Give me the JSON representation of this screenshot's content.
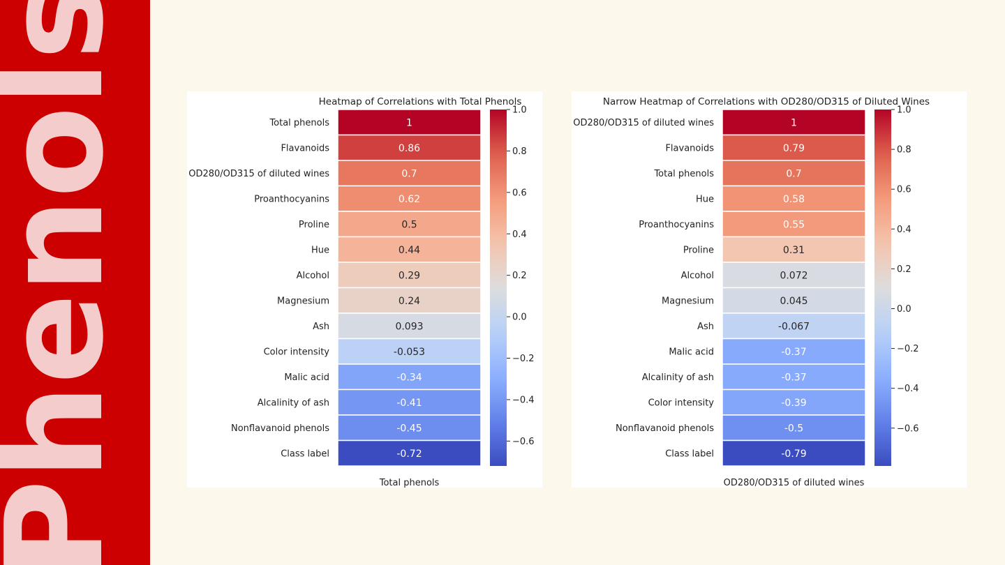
{
  "sidebar": {
    "title": "Phenols"
  },
  "chart_data": [
    {
      "type": "heatmap",
      "title": "Heatmap of Correlations with Total Phenols",
      "xlabel": "Total phenols",
      "rows": [
        "Total phenols",
        "Flavanoids",
        "OD280/OD315 of diluted wines",
        "Proanthocyanins",
        "Proline",
        "Hue",
        "Alcohol",
        "Magnesium",
        "Ash",
        "Color intensity",
        "Malic acid",
        "Alcalinity of ash",
        "Nonflavanoid phenols",
        "Class label"
      ],
      "values": [
        1,
        0.86,
        0.7,
        0.62,
        0.5,
        0.44,
        0.29,
        0.24,
        0.093,
        -0.053,
        -0.34,
        -0.41,
        -0.45,
        -0.72
      ],
      "value_labels": [
        "1",
        "0.86",
        "0.7",
        "0.62",
        "0.5",
        "0.44",
        "0.29",
        "0.24",
        "0.093",
        "-0.053",
        "-0.34",
        "-0.41",
        "-0.45",
        "-0.72"
      ],
      "colorbar": {
        "range": [
          -0.72,
          1
        ],
        "ticks": [
          1.0,
          0.8,
          0.6,
          0.4,
          0.2,
          0.0,
          -0.2,
          -0.4,
          -0.6
        ],
        "tick_labels": [
          "1.0",
          "0.8",
          "0.6",
          "0.4",
          "0.2",
          "0.0",
          "−0.2",
          "−0.4",
          "−0.6"
        ]
      },
      "colormap": "coolwarm"
    },
    {
      "type": "heatmap",
      "title": "Narrow Heatmap of Correlations with OD280/OD315 of Diluted Wines",
      "xlabel": "OD280/OD315 of diluted wines",
      "rows": [
        "OD280/OD315 of diluted wines",
        "Flavanoids",
        "Total phenols",
        "Hue",
        "Proanthocyanins",
        "Proline",
        "Alcohol",
        "Magnesium",
        "Ash",
        "Malic acid",
        "Alcalinity of ash",
        "Color intensity",
        "Nonflavanoid phenols",
        "Class label"
      ],
      "values": [
        1,
        0.79,
        0.7,
        0.58,
        0.55,
        0.31,
        0.072,
        0.045,
        -0.067,
        -0.37,
        -0.37,
        -0.39,
        -0.5,
        -0.79
      ],
      "value_labels": [
        "1",
        "0.79",
        "0.7",
        "0.58",
        "0.55",
        "0.31",
        "0.072",
        "0.045",
        "-0.067",
        "-0.37",
        "-0.37",
        "-0.39",
        "-0.5",
        "-0.79"
      ],
      "colorbar": {
        "range": [
          -0.79,
          1
        ],
        "ticks": [
          1.0,
          0.8,
          0.6,
          0.4,
          0.2,
          0.0,
          -0.2,
          -0.4,
          -0.6
        ],
        "tick_labels": [
          "1.0",
          "0.8",
          "0.6",
          "0.4",
          "0.2",
          "0.0",
          "−0.2",
          "−0.4",
          "−0.6"
        ]
      },
      "colormap": "coolwarm"
    }
  ]
}
